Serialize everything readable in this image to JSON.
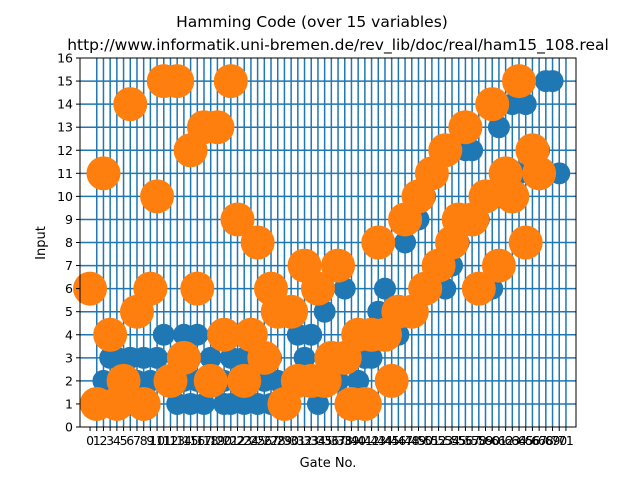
{
  "chart_data": {
    "type": "scatter",
    "title": "Hamming Code (over 15 variables)",
    "subtitle": "http://www.informatik.uni-bremen.de/rev_lib/doc/real/ham15_108.real",
    "xlabel": "Gate No.",
    "ylabel": "Input",
    "xlim": [
      -1.5,
      72.5
    ],
    "ylim": [
      0,
      16
    ],
    "x_ticks": [
      0,
      1,
      2,
      3,
      4,
      5,
      6,
      7,
      8,
      9,
      10,
      11,
      12,
      13,
      14,
      15,
      16,
      17,
      18,
      19,
      20,
      21,
      22,
      23,
      24,
      25,
      26,
      27,
      28,
      29,
      30,
      31,
      32,
      33,
      34,
      35,
      36,
      37,
      38,
      39,
      40,
      41,
      42,
      43,
      44,
      45,
      46,
      47,
      48,
      49,
      50,
      51,
      52,
      53,
      54,
      55,
      56,
      57,
      58,
      59,
      60,
      61,
      62,
      63,
      64,
      65,
      66,
      67,
      68,
      69,
      70,
      71
    ],
    "y_ticks": [
      0,
      1,
      2,
      3,
      4,
      5,
      6,
      7,
      8,
      9,
      10,
      11,
      12,
      13,
      14,
      15,
      16
    ],
    "grid_x": [
      1,
      2,
      3,
      4,
      5,
      6,
      7,
      8,
      9,
      10,
      11,
      12,
      13,
      14,
      15,
      16,
      17,
      18,
      19,
      20,
      21,
      22,
      23,
      24,
      25,
      26,
      27,
      28,
      29,
      30,
      31,
      32,
      33,
      34,
      35,
      36,
      37,
      38,
      39,
      40,
      41,
      42,
      43,
      44,
      45,
      46,
      47,
      48,
      49,
      50,
      51,
      52,
      53,
      54,
      55,
      56,
      57,
      58,
      59,
      60,
      61,
      62,
      63,
      64,
      65,
      66,
      67,
      68,
      69,
      70,
      71
    ],
    "grid_y": [
      1,
      2,
      3,
      4,
      5,
      6,
      7,
      8,
      9,
      10,
      11,
      12,
      13,
      14,
      15
    ],
    "colors": {
      "control": "#1f77b4",
      "target": "#ff7f0e",
      "line": "#1f77b4"
    },
    "series": [
      {
        "marker": "control",
        "points": [
          [
            1,
            1
          ],
          [
            2,
            2
          ],
          [
            3,
            3
          ],
          [
            3,
            4
          ],
          [
            4,
            3
          ],
          [
            5,
            2
          ],
          [
            6,
            3
          ],
          [
            7,
            2
          ],
          [
            8,
            3
          ],
          [
            9,
            2
          ],
          [
            10,
            3
          ],
          [
            11,
            4
          ],
          [
            11,
            2
          ],
          [
            12,
            2
          ],
          [
            13,
            3
          ],
          [
            13,
            1
          ],
          [
            14,
            4
          ],
          [
            14,
            2
          ],
          [
            15,
            3
          ],
          [
            15,
            1
          ],
          [
            16,
            4
          ],
          [
            16,
            2
          ],
          [
            17,
            1
          ],
          [
            18,
            3
          ],
          [
            19,
            4
          ],
          [
            20,
            2
          ],
          [
            20,
            1
          ],
          [
            21,
            3
          ],
          [
            21,
            1
          ],
          [
            22,
            2
          ],
          [
            23,
            3
          ],
          [
            23,
            1
          ],
          [
            24,
            2
          ],
          [
            25,
            3
          ],
          [
            25,
            1
          ],
          [
            26,
            2
          ],
          [
            27,
            3
          ],
          [
            27,
            1
          ],
          [
            28,
            2
          ],
          [
            29,
            1
          ],
          [
            30,
            2
          ],
          [
            31,
            4
          ],
          [
            32,
            3
          ],
          [
            33,
            4
          ],
          [
            34,
            1
          ],
          [
            34,
            2
          ],
          [
            35,
            5
          ],
          [
            36,
            3
          ],
          [
            37,
            2
          ],
          [
            38,
            6
          ],
          [
            39,
            3
          ],
          [
            40,
            2
          ],
          [
            41,
            3
          ],
          [
            42,
            3
          ],
          [
            43,
            5
          ],
          [
            44,
            6
          ],
          [
            45,
            5
          ],
          [
            46,
            4
          ],
          [
            47,
            8
          ],
          [
            48,
            9
          ],
          [
            49,
            9
          ],
          [
            50,
            10
          ],
          [
            51,
            11
          ],
          [
            53,
            6
          ],
          [
            54,
            7
          ],
          [
            55,
            8
          ],
          [
            56,
            12
          ],
          [
            57,
            12
          ],
          [
            58,
            9
          ],
          [
            59,
            10
          ],
          [
            60,
            6
          ],
          [
            61,
            13
          ],
          [
            62,
            10
          ],
          [
            63,
            14
          ],
          [
            64,
            11
          ],
          [
            65,
            14
          ],
          [
            66,
            11
          ],
          [
            67,
            12
          ],
          [
            68,
            15
          ],
          [
            69,
            15
          ],
          [
            70,
            11
          ]
        ]
      },
      {
        "marker": "target",
        "points": [
          [
            0,
            6
          ],
          [
            1,
            1
          ],
          [
            2,
            11
          ],
          [
            3,
            4
          ],
          [
            4,
            1
          ],
          [
            5,
            2
          ],
          [
            6,
            14
          ],
          [
            7,
            5
          ],
          [
            8,
            1
          ],
          [
            9,
            6
          ],
          [
            10,
            10
          ],
          [
            11,
            15
          ],
          [
            12,
            2
          ],
          [
            13,
            15
          ],
          [
            14,
            3
          ],
          [
            15,
            12
          ],
          [
            16,
            6
          ],
          [
            17,
            13
          ],
          [
            18,
            2
          ],
          [
            19,
            13
          ],
          [
            20,
            4
          ],
          [
            21,
            15
          ],
          [
            22,
            9
          ],
          [
            23,
            2
          ],
          [
            24,
            4
          ],
          [
            25,
            8
          ],
          [
            26,
            3
          ],
          [
            27,
            6
          ],
          [
            28,
            5
          ],
          [
            29,
            1
          ],
          [
            30,
            5
          ],
          [
            31,
            2
          ],
          [
            32,
            7
          ],
          [
            33,
            2
          ],
          [
            34,
            6
          ],
          [
            35,
            2
          ],
          [
            36,
            3
          ],
          [
            37,
            7
          ],
          [
            38,
            3
          ],
          [
            39,
            1
          ],
          [
            40,
            4
          ],
          [
            41,
            1
          ],
          [
            42,
            4
          ],
          [
            43,
            8
          ],
          [
            44,
            4
          ],
          [
            45,
            2
          ],
          [
            46,
            5
          ],
          [
            47,
            9
          ],
          [
            48,
            5
          ],
          [
            49,
            10
          ],
          [
            50,
            6
          ],
          [
            51,
            11
          ],
          [
            52,
            7
          ],
          [
            53,
            12
          ],
          [
            54,
            8
          ],
          [
            55,
            9
          ],
          [
            56,
            13
          ],
          [
            57,
            9
          ],
          [
            58,
            6
          ],
          [
            59,
            10
          ],
          [
            60,
            14
          ],
          [
            61,
            7
          ],
          [
            62,
            11
          ],
          [
            63,
            10
          ],
          [
            64,
            15
          ],
          [
            65,
            8
          ],
          [
            66,
            12
          ],
          [
            67,
            11
          ]
        ]
      }
    ]
  }
}
